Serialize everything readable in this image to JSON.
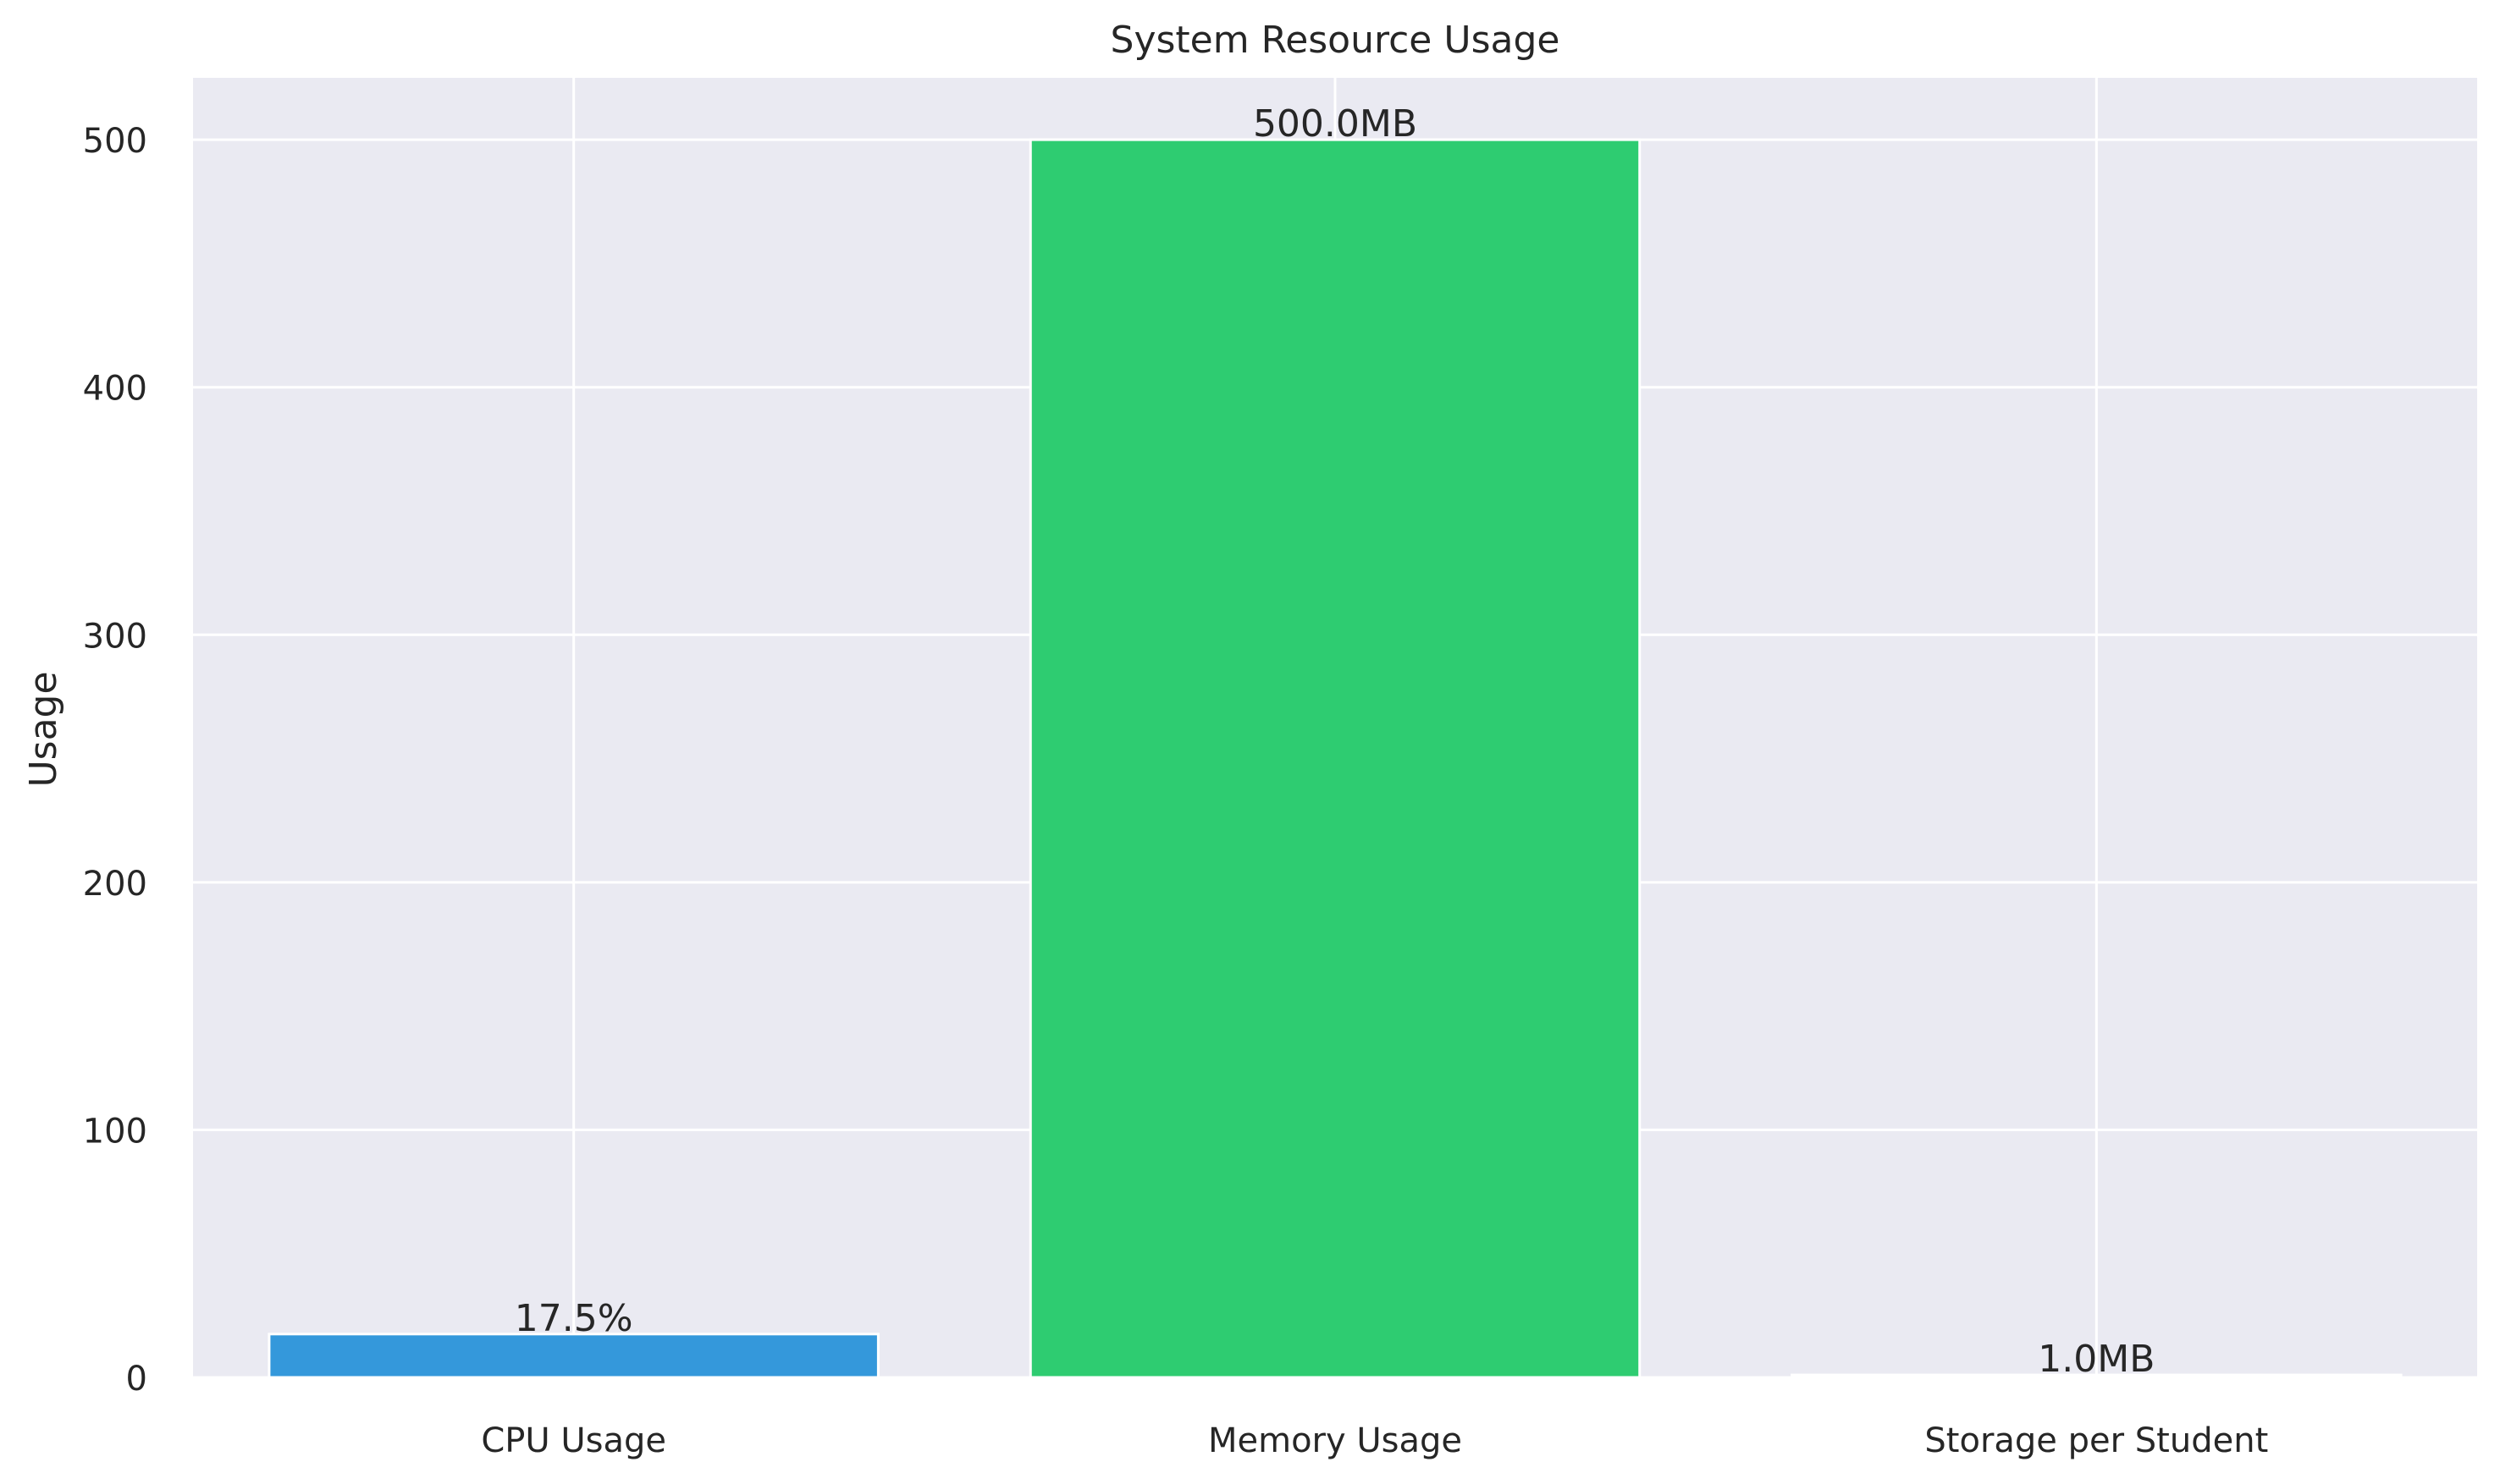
{
  "chart_data": {
    "type": "bar",
    "title": "System Resource Usage",
    "xlabel": "",
    "ylabel": "Usage",
    "categories": [
      "CPU Usage",
      "Memory Usage",
      "Storage per Student"
    ],
    "values": [
      17.5,
      500.0,
      1.0
    ],
    "data_labels": [
      "17.5%",
      "500.0MB",
      "1.0MB"
    ],
    "colors": [
      "#3498db",
      "#2ecc71",
      "#e74c3c"
    ],
    "ylim": [
      0,
      525
    ],
    "yticks": [
      0,
      100,
      200,
      300,
      400,
      500
    ],
    "grid": true,
    "background": "#eaeaf2"
  }
}
